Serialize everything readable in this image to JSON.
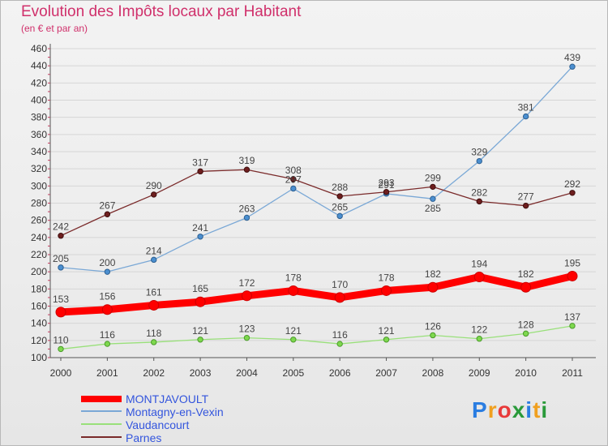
{
  "header": {
    "title": "Evolution des Impôts locaux par Habitant",
    "subtitle": "(en € et par an)"
  },
  "brand": {
    "text": "Proxiti",
    "letter_colors": [
      "#2a7de1",
      "#f0a020",
      "#e83a3a",
      "#2a9a3a",
      "#2a7de1",
      "#f0a020",
      "#2a9a3a"
    ]
  },
  "chart_data": {
    "type": "line",
    "title": "Evolution des Impôts locaux par Habitant",
    "subtitle": "(en € et par an)",
    "xlabel": "",
    "ylabel": "",
    "categories": [
      "2000",
      "2001",
      "2002",
      "2003",
      "2004",
      "2005",
      "2006",
      "2007",
      "2008",
      "2009",
      "2010",
      "2011"
    ],
    "ylim": [
      100,
      460
    ],
    "yticks": [
      100,
      120,
      140,
      160,
      180,
      200,
      220,
      240,
      260,
      280,
      300,
      320,
      340,
      360,
      380,
      400,
      420,
      440,
      460
    ],
    "grid": "horizontal",
    "legend_position": "bottom-left",
    "series": [
      {
        "name": "MONTJAVOULT",
        "color": "#ff0000",
        "marker_fill": "#ff0000",
        "marker_stroke": "#cc0000",
        "width": "thick",
        "values": [
          153,
          156,
          161,
          165,
          172,
          178,
          170,
          178,
          182,
          194,
          182,
          195
        ]
      },
      {
        "name": "Montagny-en-Vexin",
        "color": "#7aa8d6",
        "marker_fill": "#4b8fd0",
        "marker_stroke": "#2d5f90",
        "width": "thin",
        "values": [
          205,
          200,
          214,
          241,
          263,
          297,
          265,
          291,
          285,
          329,
          381,
          439
        ]
      },
      {
        "name": "Vaudancourt",
        "color": "#99e07a",
        "marker_fill": "#7ed84e",
        "marker_stroke": "#4a9a2a",
        "width": "thin",
        "values": [
          110,
          116,
          118,
          121,
          123,
          121,
          116,
          121,
          126,
          122,
          128,
          137
        ]
      },
      {
        "name": "Parnes",
        "color": "#7a2a2a",
        "marker_fill": "#6e1e1e",
        "marker_stroke": "#3e0e0e",
        "width": "thin",
        "values": [
          242,
          267,
          290,
          317,
          319,
          308,
          288,
          293,
          299,
          282,
          277,
          292
        ]
      }
    ],
    "label_placement": [
      [
        "above",
        "above",
        "above",
        "above",
        "above",
        "above",
        "above",
        "above",
        "above",
        "above",
        "above",
        "above"
      ],
      [
        "above",
        "above",
        "above",
        "above",
        "above",
        "above",
        "above",
        "above",
        "below",
        "above",
        "above",
        "above"
      ],
      [
        "above",
        "above",
        "above",
        "above",
        "above",
        "above",
        "above",
        "above",
        "above",
        "above",
        "above",
        "above"
      ],
      [
        "above",
        "above",
        "above",
        "above",
        "above",
        "above",
        "above",
        "above",
        "above",
        "above",
        "above",
        "above"
      ]
    ]
  }
}
